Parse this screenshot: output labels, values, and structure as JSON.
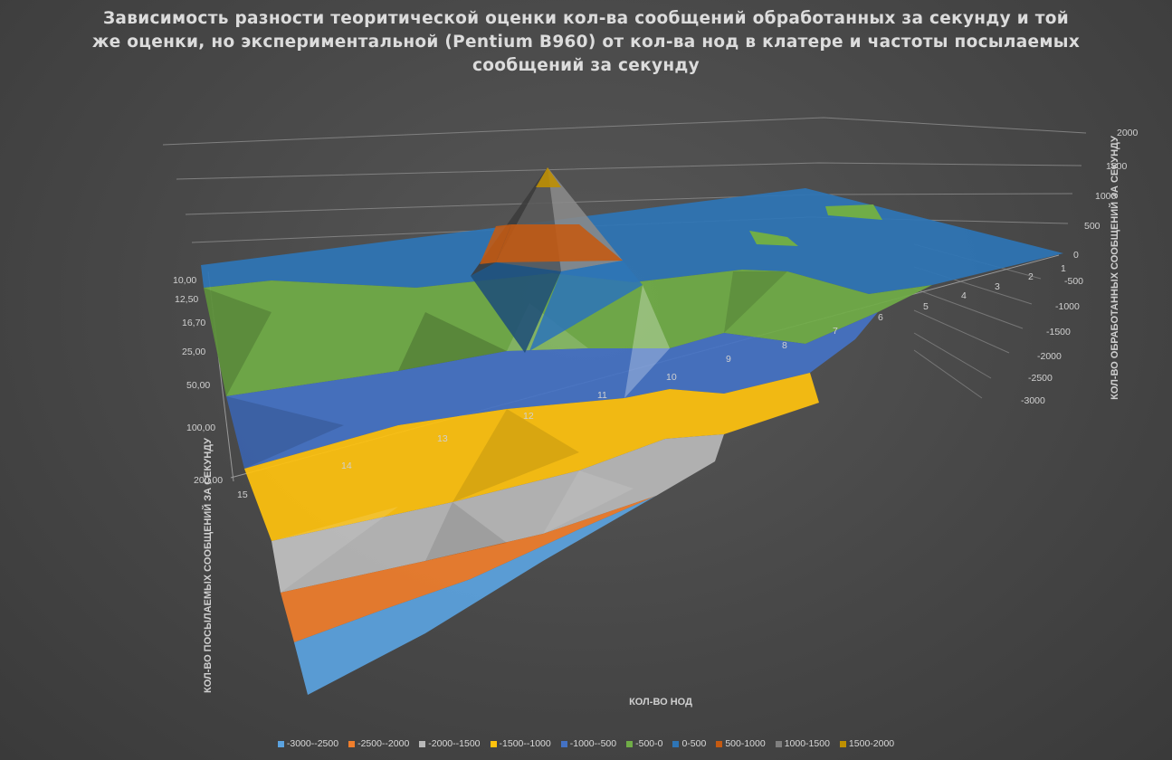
{
  "chart_data": {
    "type": "surface-3d",
    "title": "Зависимость разности теоритической оценки кол-ва сообщений обработанных за секунду и той же оценки, но экспериментальной (Pentium B960) от кол-ва нод в клатере и частоты посылаемых сообщений за секунду",
    "xlabel": "КОЛ-ВО НОД",
    "ylabel": "КОЛ-ВО ПОСЫЛАЕМЫХ СООБЩЕНИЙ ЗА СЕКУНДУ",
    "zlabel": "КОЛ-ВО ОБРАБОТАННЫХ СООБЩЕНИЙ ЗА СЕКУНДУ",
    "x_ticks": [
      "1",
      "2",
      "3",
      "4",
      "5",
      "6",
      "7",
      "8",
      "9",
      "10",
      "11",
      "12",
      "13",
      "14",
      "15"
    ],
    "y_ticks": [
      "10,00",
      "12,50",
      "16,70",
      "25,00",
      "50,00",
      "100,00",
      "200,00"
    ],
    "z_ticks": [
      "2000",
      "1500",
      "1000",
      "500",
      "0",
      "-500",
      "-1000",
      "-1500",
      "-2000",
      "-2500",
      "-3000"
    ],
    "zlim": [
      -3000,
      2000
    ],
    "legend": [
      {
        "label": "-3000--2500",
        "color": "#5ba3e0"
      },
      {
        "label": "-2500--2000",
        "color": "#f07e2c"
      },
      {
        "label": "-2000--1500",
        "color": "#b8b8b8"
      },
      {
        "label": "-1500--1000",
        "color": "#ffc20e"
      },
      {
        "label": "-1000--500",
        "color": "#4472c4"
      },
      {
        "label": "-500-0",
        "color": "#70ad47"
      },
      {
        "label": "0-500",
        "color": "#2e75b6"
      },
      {
        "label": "500-1000",
        "color": "#c55a11"
      },
      {
        "label": "1000-1500",
        "color": "#7f7f7f"
      },
      {
        "label": "1500-2000",
        "color": "#bf9000"
      }
    ]
  }
}
